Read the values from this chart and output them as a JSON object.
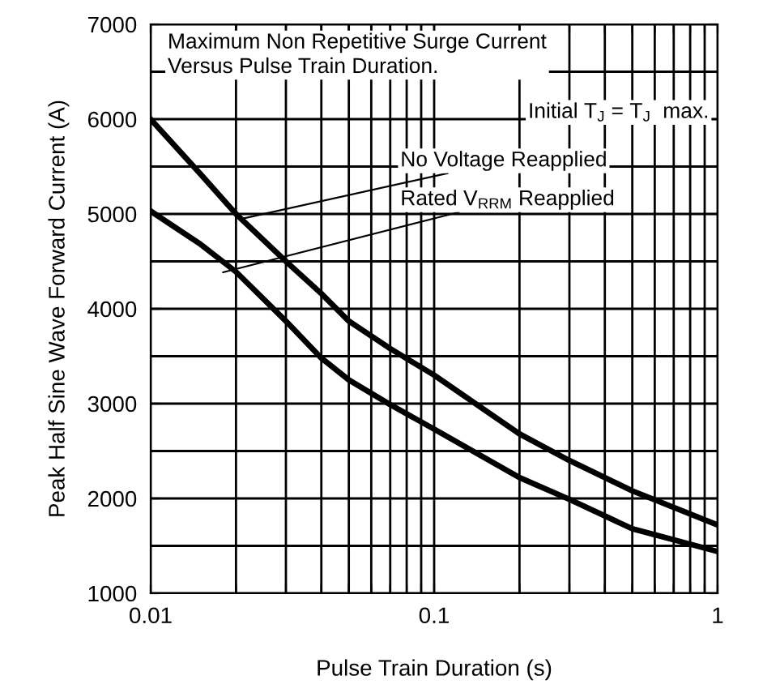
{
  "chart_data": {
    "type": "line",
    "title": "Maximum Non Repetitive Surge Current\nVersus Pulse Train Duration.",
    "subtitle": "Initial T$_{J}$ = T$_{J}$  max.",
    "xlabel": "Pulse Train Duration (s)",
    "ylabel": "Peak Half Sine Wave Forward Current (A)",
    "x": [
      0.01,
      0.015,
      0.02,
      0.03,
      0.04,
      0.05,
      0.07,
      0.1,
      0.2,
      0.3,
      0.5,
      1
    ],
    "series": [
      {
        "color": "#000000",
        "values": [
          6000,
          5420,
          5000,
          4500,
          4160,
          3870,
          3580,
          3300,
          2680,
          2400,
          2080,
          1720
        ]
      },
      {
        "color": "#000000",
        "values": [
          5030,
          4680,
          4390,
          3870,
          3480,
          3250,
          2990,
          2730,
          2220,
          1990,
          1680,
          1440
        ]
      }
    ],
    "annotations": [
      {
        "text": "No Voltage Reapplied",
        "x": 0.021,
        "y": 4950
      },
      {
        "text": "Rated V$_{RRM}$ Reapplied",
        "x": 0.018,
        "y": 4385
      }
    ],
    "log": "x",
    "xlim": [
      0.01,
      1
    ],
    "xticks": [
      0.01,
      {
        "value": 0.02,
        "label": null
      },
      {
        "value": 0.03,
        "label": null
      },
      {
        "value": 0.04,
        "label": null
      },
      {
        "value": 0.05,
        "label": null
      },
      {
        "value": 0.06,
        "label": null
      },
      {
        "value": 0.07,
        "label": null
      },
      {
        "value": 0.08,
        "label": null
      },
      {
        "value": 0.09,
        "label": null
      },
      0.1,
      {
        "value": 0.2,
        "label": null
      },
      {
        "value": 0.3,
        "label": null
      },
      {
        "value": 0.4,
        "label": null
      },
      {
        "value": 0.5,
        "label": null
      },
      {
        "value": 0.6,
        "label": null
      },
      {
        "value": 0.7,
        "label": null
      },
      {
        "value": 0.8,
        "label": null
      },
      {
        "value": 0.9,
        "label": null
      },
      1
    ],
    "ylim": [
      1000,
      7000
    ],
    "yticks": [
      1000,
      {
        "value": 1500,
        "label": null
      },
      2000,
      {
        "value": 2500,
        "label": null
      },
      3000,
      {
        "value": 3500,
        "label": null
      },
      4000,
      {
        "value": 4500,
        "label": null
      },
      5000,
      {
        "value": 5500,
        "label": null
      },
      6000,
      {
        "value": 6500,
        "label": null
      },
      7000
    ],
    "grid": true,
    "marker": "none",
    "line_style": "solid"
  }
}
